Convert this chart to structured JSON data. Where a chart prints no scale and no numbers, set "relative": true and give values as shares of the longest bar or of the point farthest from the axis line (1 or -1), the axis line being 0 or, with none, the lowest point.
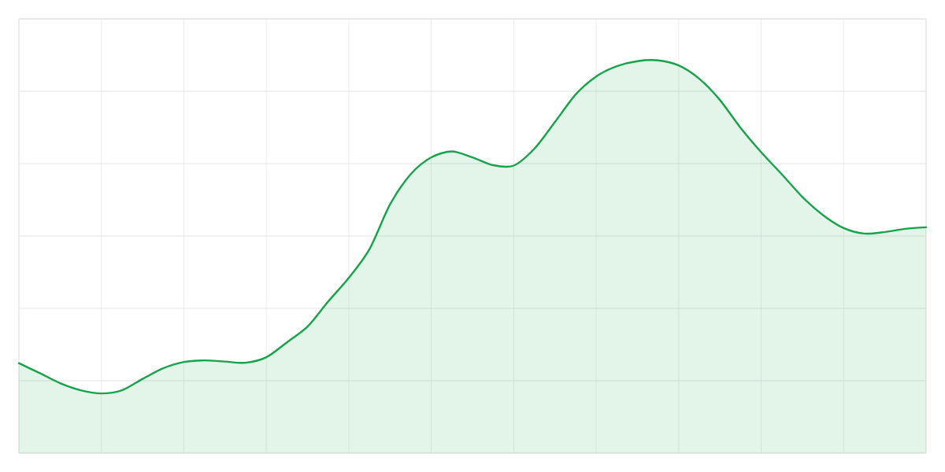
{
  "chart_data": {
    "type": "area",
    "relative": true,
    "grid": true,
    "color": "#16a34a",
    "categories": [
      null,
      null,
      null,
      null,
      null,
      null,
      null,
      null,
      null,
      null,
      null,
      null,
      null,
      null,
      null,
      null,
      null,
      null,
      null,
      null,
      null,
      null,
      null,
      null,
      null,
      null,
      null,
      null,
      null,
      null,
      null,
      null,
      null,
      null,
      null,
      null,
      null,
      null,
      null,
      null,
      null,
      null,
      null,
      null,
      null
    ],
    "values": [
      0.229,
      0.204,
      0.178,
      0.16,
      0.152,
      0.16,
      0.189,
      0.216,
      0.232,
      0.236,
      0.233,
      0.23,
      0.244,
      0.282,
      0.322,
      0.386,
      0.446,
      0.519,
      0.633,
      0.71,
      0.753,
      0.768,
      0.753,
      0.733,
      0.732,
      0.775,
      0.843,
      0.913,
      0.959,
      0.985,
      0.998,
      1.0,
      0.987,
      0.953,
      0.899,
      0.828,
      0.766,
      0.71,
      0.652,
      0.606,
      0.573,
      0.559,
      0.563,
      0.571,
      0.575
    ]
  }
}
